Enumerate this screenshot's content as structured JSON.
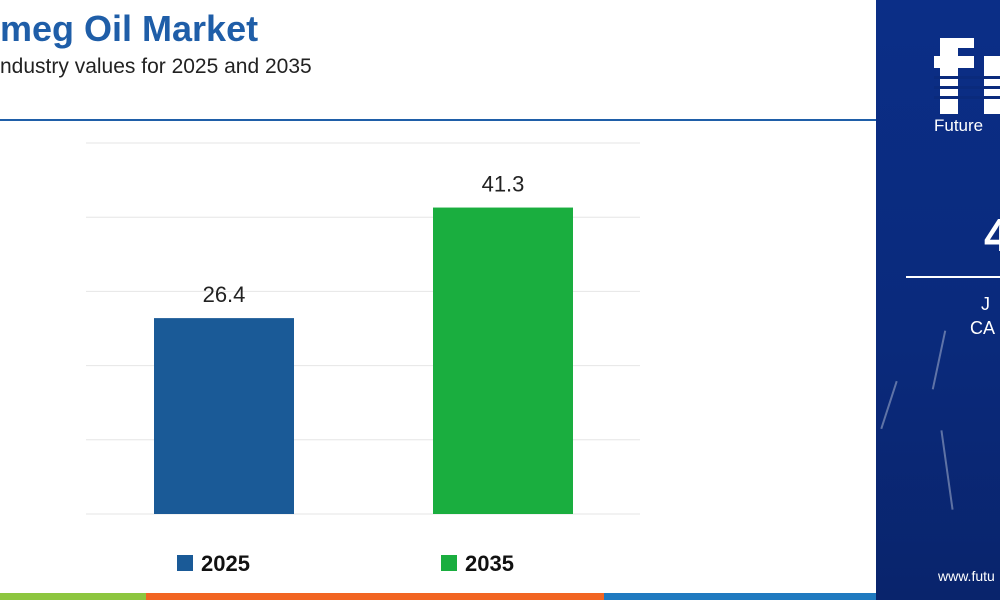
{
  "header": {
    "title": "meg Oil Market",
    "subtitle": "ndustry values for 2025 and 2035"
  },
  "chart_data": {
    "type": "bar",
    "categories": [
      "2025",
      "2035"
    ],
    "values": [
      26.4,
      41.3
    ],
    "value_labels": [
      "26.4",
      "41.3"
    ],
    "colors": [
      "#1a5a97",
      "#1aae3f"
    ],
    "ylim": [
      0,
      50
    ],
    "grid": true,
    "legend": {
      "placement": "bottom",
      "entries": [
        "2025",
        "2035"
      ]
    }
  },
  "side_panel": {
    "brand": "Future",
    "big_value": "4",
    "period": "J",
    "metric": "CA",
    "website": "www.futu"
  },
  "colors": {
    "title": "#1f5ea8",
    "panel": "#0a2a7c",
    "strip": [
      "#8dc63f",
      "#f26522",
      "#1f7ac0"
    ]
  }
}
